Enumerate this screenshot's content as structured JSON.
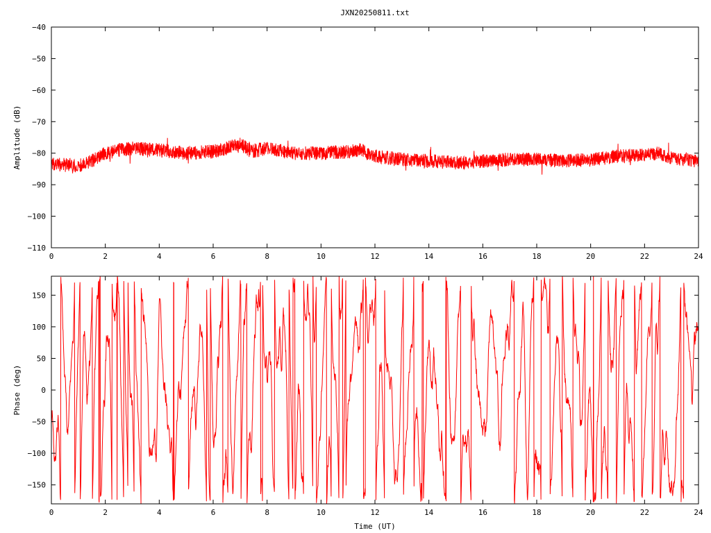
{
  "title": "JXN20250811.txt",
  "colors": {
    "series": "#ff0000",
    "axis": "#000000",
    "background": "#ffffff"
  },
  "chart_data": [
    {
      "type": "line",
      "name": "amplitude-panel",
      "ylabel": "Amplitude (dB)",
      "xlabel": "",
      "xlim": [
        0,
        24
      ],
      "ylim": [
        -110,
        -40
      ],
      "xticks": [
        0,
        2,
        4,
        6,
        8,
        10,
        12,
        14,
        16,
        18,
        20,
        22,
        24
      ],
      "yticks": [
        -110,
        -100,
        -90,
        -80,
        -70,
        -60,
        -50,
        -40
      ],
      "grid": false,
      "trend": {
        "x": [
          0,
          1,
          1.5,
          2,
          2.5,
          3,
          4,
          5,
          6,
          6.5,
          7,
          7.4,
          8,
          9,
          10,
          11,
          11.5,
          12,
          13,
          14,
          15,
          16,
          17,
          18,
          19,
          20,
          21,
          22,
          22.5,
          23,
          24
        ],
        "y": [
          -83.5,
          -84,
          -82.5,
          -80,
          -79,
          -78.5,
          -79,
          -80,
          -79.5,
          -78.5,
          -77,
          -79.5,
          -78.5,
          -80,
          -80,
          -79.5,
          -79,
          -81,
          -82,
          -82.5,
          -83,
          -82.5,
          -82,
          -82,
          -82.5,
          -82,
          -81,
          -80.5,
          -80,
          -81.5,
          -82.5
        ]
      },
      "noise_band_db": 2.2
    },
    {
      "type": "line",
      "name": "phase-panel",
      "ylabel": "Phase (deg)",
      "xlabel": "Time (UT)",
      "xlim": [
        0,
        24
      ],
      "ylim": [
        -180,
        180
      ],
      "xticks": [
        0,
        2,
        4,
        6,
        8,
        10,
        12,
        14,
        16,
        18,
        20,
        22,
        24
      ],
      "yticks": [
        -150,
        -100,
        -50,
        0,
        50,
        100,
        150
      ],
      "grid": false,
      "wrapped_range": [
        -180,
        180
      ]
    }
  ]
}
